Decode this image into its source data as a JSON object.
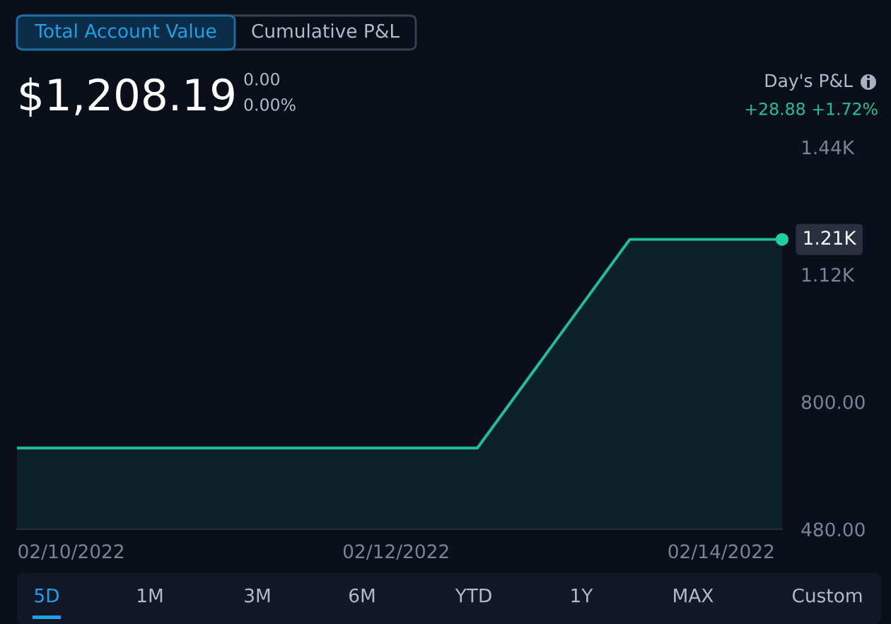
{
  "chart_data": {
    "type": "area",
    "title": "Total Account Value",
    "x": [
      "2022-02-09T16:00",
      "2022-02-12T12:00",
      "2022-02-13T10:30",
      "2022-02-14T09:00"
    ],
    "series": [
      {
        "color": "#1fbf9b",
        "values": [
          684,
          684,
          1208.19,
          1208.19
        ]
      },
      {
        "type": "scatter",
        "x": [
          "2022-02-14T09:00"
        ],
        "color": "#1fcf9f",
        "values": [
          1208.19
        ],
        "marker": "circle"
      }
    ],
    "xlim": [
      "2022-02-09T16:00",
      "2022-02-14T09:00"
    ],
    "xticks": [
      {
        "value": "2022-02-10",
        "label": "02/10/2022"
      },
      {
        "value": "2022-02-12",
        "label": "02/12/2022"
      },
      {
        "value": "2022-02-14",
        "label": "02/14/2022"
      }
    ],
    "ylim": [
      480,
      1440
    ],
    "yticks": [
      {
        "value": 480,
        "label": "480.00"
      },
      {
        "value": 800,
        "label": "800.00"
      },
      {
        "value": 1120,
        "label": "1.12K"
      },
      {
        "value": 1440,
        "label": "1.44K"
      }
    ],
    "annotations": [
      "Cumulative P&L",
      "$1,208.19",
      "0.00",
      "0.00%",
      "Day's P&L",
      "+28.88 +1.72%",
      "5D",
      "1M",
      "3M",
      "6M",
      "YTD",
      "1Y",
      "MAX",
      "Custom",
      {
        "text": "1.21K",
        "x": "2022-02-14T09:00",
        "y": 1208.19
      }
    ],
    "grid": false
  }
}
